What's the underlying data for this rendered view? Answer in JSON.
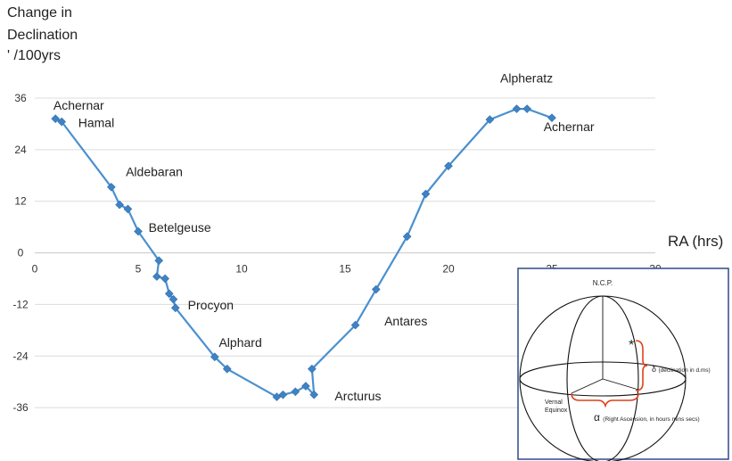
{
  "chart_data": {
    "type": "line",
    "title": "",
    "ylabel_lines": [
      "Change in",
      "Declination",
      "' /100yrs"
    ],
    "xlabel": "RA (hrs)",
    "xlim": [
      0,
      30
    ],
    "ylim": [
      -48,
      36
    ],
    "xticks": [
      0,
      5,
      10,
      15,
      20,
      25,
      30
    ],
    "yticks": [
      36,
      24,
      12,
      0,
      -12,
      -24,
      -36
    ],
    "grid": "horizontal",
    "line_color": "#4a90cf",
    "marker_color": "#3f83c4",
    "points": [
      {
        "x": 1.0,
        "y": 31.2
      },
      {
        "x": 1.3,
        "y": 30.5
      },
      {
        "x": 3.7,
        "y": 15.3
      },
      {
        "x": 4.1,
        "y": 11.2
      },
      {
        "x": 4.5,
        "y": 10.2
      },
      {
        "x": 5.0,
        "y": 5.0
      },
      {
        "x": 6.0,
        "y": -1.8
      },
      {
        "x": 5.9,
        "y": -5.5
      },
      {
        "x": 6.3,
        "y": -6.0
      },
      {
        "x": 6.5,
        "y": -9.5
      },
      {
        "x": 6.7,
        "y": -10.8
      },
      {
        "x": 6.8,
        "y": -12.8
      },
      {
        "x": 8.7,
        "y": -24.2
      },
      {
        "x": 9.3,
        "y": -27.0
      },
      {
        "x": 11.7,
        "y": -33.5
      },
      {
        "x": 12.0,
        "y": -33.0
      },
      {
        "x": 12.6,
        "y": -32.3
      },
      {
        "x": 13.1,
        "y": -31.0
      },
      {
        "x": 13.5,
        "y": -33.0
      },
      {
        "x": 13.4,
        "y": -27.0
      },
      {
        "x": 15.5,
        "y": -16.8
      },
      {
        "x": 16.5,
        "y": -8.5
      },
      {
        "x": 18.0,
        "y": 3.8
      },
      {
        "x": 18.9,
        "y": 13.7
      },
      {
        "x": 20.0,
        "y": 20.2
      },
      {
        "x": 22.0,
        "y": 31.0
      },
      {
        "x": 23.3,
        "y": 33.5
      },
      {
        "x": 23.8,
        "y": 33.5
      },
      {
        "x": 25.0,
        "y": 31.4
      }
    ],
    "annotations": [
      {
        "text": "Achernar",
        "x": 0.9,
        "y": 33.3
      },
      {
        "text": "Hamal",
        "x": 2.1,
        "y": 29.3
      },
      {
        "text": "Aldebaran",
        "x": 4.4,
        "y": 17.9
      },
      {
        "text": "Betelgeuse",
        "x": 5.5,
        "y": 4.9
      },
      {
        "text": "Procyon",
        "x": 7.4,
        "y": -13.2
      },
      {
        "text": "Alphard",
        "x": 8.9,
        "y": -21.9
      },
      {
        "text": "Arcturus",
        "x": 14.5,
        "y": -34.3
      },
      {
        "text": "Antares",
        "x": 16.9,
        "y": -16.9
      },
      {
        "text": "Alpheratz",
        "x": 22.5,
        "y": 39.6
      },
      {
        "text": "Achernar",
        "x": 24.6,
        "y": 28.3
      }
    ]
  },
  "inset": {
    "ncp_label": "N.C.P.",
    "star_glyph": "*",
    "delta_symbol": "δ",
    "delta_text": "(declination in d.ms)",
    "alpha_symbol": "α",
    "alpha_text": "(Right Ascension, in hours mins secs)",
    "vernal_line1": "Vernal",
    "vernal_line2": "Equinox",
    "bracket_color": "#e0401a",
    "frame_color": "#2f4a8a"
  }
}
